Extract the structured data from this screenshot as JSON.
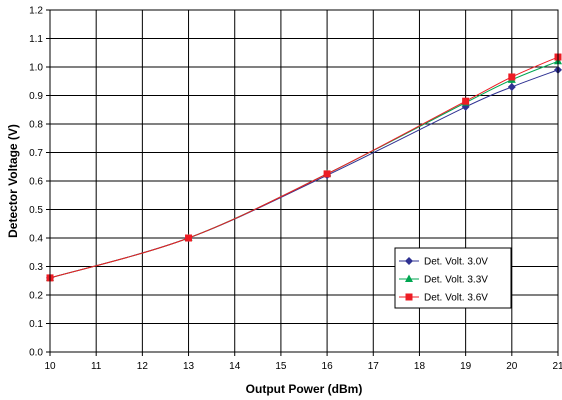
{
  "chart_data": {
    "type": "line",
    "title": "",
    "xlabel": "Output Power (dBm)",
    "ylabel": "Detector Voltage (V)",
    "xlim": [
      10,
      21
    ],
    "ylim": [
      0.0,
      1.2
    ],
    "x_ticks": [
      "10",
      "11",
      "12",
      "13",
      "14",
      "15",
      "16",
      "17",
      "18",
      "19",
      "20",
      "21"
    ],
    "y_ticks": [
      "0.0",
      "0.1",
      "0.2",
      "0.3",
      "0.4",
      "0.5",
      "0.6",
      "0.7",
      "0.8",
      "0.9",
      "1.0",
      "1.1",
      "1.2"
    ],
    "grid": true,
    "legend_position": "lower-right",
    "series": [
      {
        "name": "Det. Volt. 3.0V",
        "color": "#2e3192",
        "marker": "diamond",
        "x": [
          10,
          13,
          16,
          19,
          20,
          21
        ],
        "values": [
          0.26,
          0.4,
          0.62,
          0.86,
          0.93,
          0.99
        ]
      },
      {
        "name": "Det. Volt. 3.3V",
        "color": "#00a651",
        "marker": "triangle",
        "x": [
          10,
          13,
          16,
          19,
          20,
          21
        ],
        "values": [
          0.26,
          0.4,
          0.625,
          0.875,
          0.955,
          1.02
        ]
      },
      {
        "name": "Det. Volt. 3.6V",
        "color": "#ed1c24",
        "marker": "square",
        "x": [
          10,
          13,
          16,
          19,
          20,
          21
        ],
        "values": [
          0.26,
          0.4,
          0.625,
          0.88,
          0.965,
          1.035
        ]
      }
    ]
  }
}
